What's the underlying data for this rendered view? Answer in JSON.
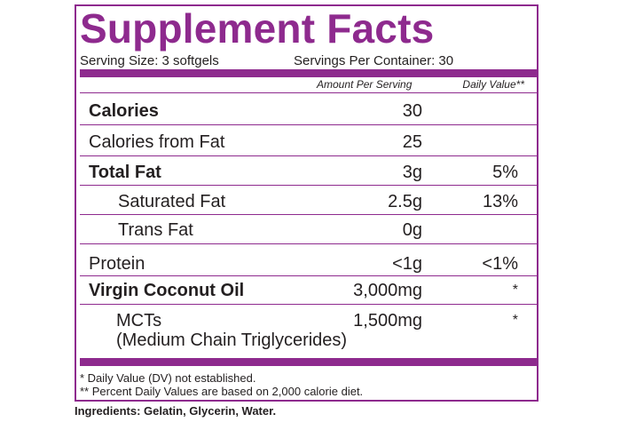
{
  "label": {
    "title": "Supplement Facts",
    "serving_size": "Serving Size: 3 softgels",
    "servings_per_container": "Servings Per Container: 30",
    "col_amount": "Amount Per Serving",
    "col_dv": "Daily Value**",
    "rows": [
      {
        "name": "Calories",
        "amount": "30",
        "dv": ""
      },
      {
        "name": "Calories from Fat",
        "amount": "25",
        "dv": ""
      },
      {
        "name": "Total Fat",
        "amount": "3g",
        "dv": "5%"
      },
      {
        "name": "Saturated Fat",
        "amount": "2.5g",
        "dv": "13%"
      },
      {
        "name": "Trans Fat",
        "amount": "0g",
        "dv": ""
      },
      {
        "name": "Protein",
        "amount": "<1g",
        "dv": "<1%"
      },
      {
        "name": "Virgin Coconut Oil",
        "amount": "3,000mg",
        "dv": "*"
      },
      {
        "name": "MCTs",
        "name_line2": "(Medium Chain Triglycerides)",
        "amount": "1,500mg",
        "dv": "*"
      }
    ],
    "footnote1": "*  Daily Value (DV) not established.",
    "footnote2": "** Percent Daily Values are based on 2,000 calorie diet."
  },
  "ingredients": "Ingredients: Gelatin, Glycerin, Water.",
  "colors": {
    "accent": "#8e2a8e",
    "text": "#231f20"
  }
}
